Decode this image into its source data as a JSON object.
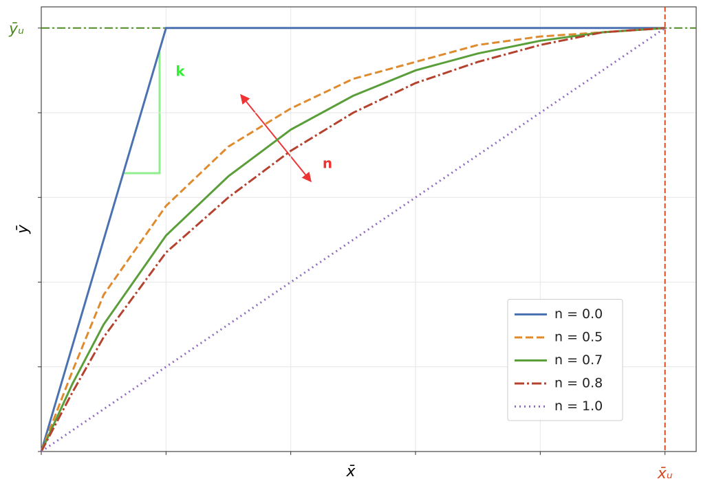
{
  "chart_data": {
    "type": "line",
    "xlabel": "x̄",
    "ylabel": "ȳ",
    "xlim": [
      0,
      1.05
    ],
    "ylim": [
      0,
      1.05
    ],
    "xticks": [
      0,
      0.2,
      0.4,
      0.6,
      0.8,
      1.0
    ],
    "yticks": [
      0,
      0.2,
      0.4,
      0.6,
      0.8,
      1.0
    ],
    "grid": true,
    "legend": "lower right",
    "series": [
      {
        "name": "n = 0.0",
        "color": "#4a72b0",
        "dash": "solid",
        "x": [
          0,
          0.2,
          1.0
        ],
        "values": [
          0,
          1,
          1
        ]
      },
      {
        "name": "n = 0.5",
        "color": "#e08a2e",
        "dash": "dashed",
        "x": [
          0,
          0.05,
          0.1,
          0.2,
          0.3,
          0.4,
          0.5,
          0.6,
          0.7,
          0.8,
          0.9,
          1.0
        ],
        "values": [
          0,
          0.19,
          0.37,
          0.58,
          0.72,
          0.81,
          0.88,
          0.92,
          0.96,
          0.98,
          0.99,
          1.0
        ]
      },
      {
        "name": "n = 0.7",
        "color": "#5a9e3a",
        "dash": "solid",
        "x": [
          0,
          0.05,
          0.1,
          0.2,
          0.3,
          0.4,
          0.5,
          0.6,
          0.7,
          0.8,
          0.9,
          1.0
        ],
        "values": [
          0,
          0.16,
          0.3,
          0.51,
          0.65,
          0.76,
          0.84,
          0.9,
          0.94,
          0.97,
          0.99,
          1.0
        ]
      },
      {
        "name": "n = 0.8",
        "color": "#b5422e",
        "dash": "dashdot",
        "x": [
          0,
          0.05,
          0.1,
          0.2,
          0.3,
          0.4,
          0.5,
          0.6,
          0.7,
          0.8,
          0.9,
          1.0
        ],
        "values": [
          0,
          0.14,
          0.27,
          0.47,
          0.6,
          0.71,
          0.8,
          0.87,
          0.92,
          0.96,
          0.99,
          1.0
        ]
      },
      {
        "name": "n = 1.0",
        "color": "#8e6bbf",
        "dash": "dotted",
        "x": [
          0,
          1.0
        ],
        "values": [
          0,
          1
        ]
      }
    ],
    "x_ref": {
      "value": 1.0,
      "label": "x̄ᵤ",
      "color": "#d9481f"
    },
    "y_ref": {
      "value": 1.0,
      "label": "ȳᵤ",
      "color": "#4e8a1e"
    },
    "annotations": [
      {
        "text": "k",
        "color": "#33ee33"
      },
      {
        "text": "n",
        "color": "#ee3333"
      }
    ]
  }
}
